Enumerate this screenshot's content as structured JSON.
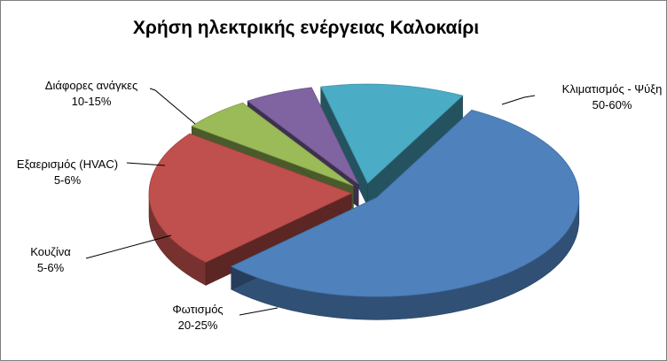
{
  "chart_data": {
    "type": "pie",
    "style": "3d-exploded",
    "title": "Χρήση ηλεκτρικής ενέργειας Καλοκαίρι",
    "legend": "none",
    "slices": [
      {
        "name": "Κλιματισμός - Ψύξη",
        "range_label": "50-60%",
        "value": 55,
        "color": "#4F81BD"
      },
      {
        "name": "Φωτισμός",
        "range_label": "20-25%",
        "value": 22.5,
        "color": "#C0504D"
      },
      {
        "name": "Κουζίνα",
        "range_label": "5-6%",
        "value": 5.5,
        "color": "#9BBB59"
      },
      {
        "name": "Εξαερισμός (HVAC)",
        "range_label": "5-6%",
        "value": 5.5,
        "color": "#8064A2"
      },
      {
        "name": "Διάφορες ανάγκες",
        "range_label": "10-15%",
        "value": 11.5,
        "color": "#4BACC6"
      }
    ]
  }
}
